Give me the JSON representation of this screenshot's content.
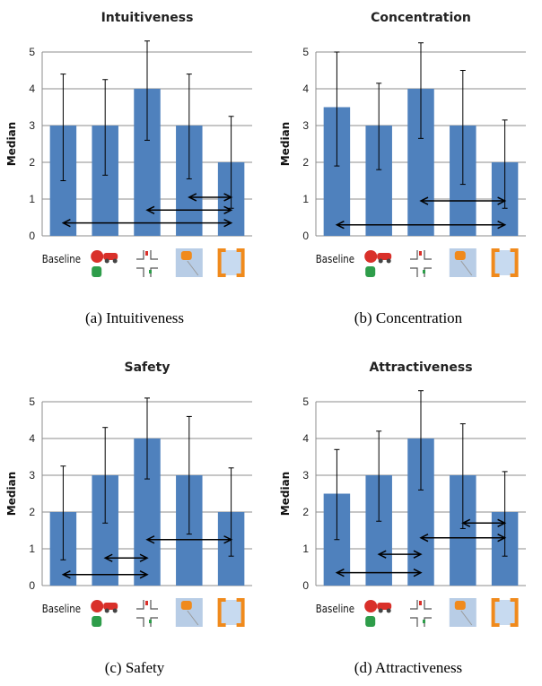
{
  "chart_data": [
    {
      "type": "bar",
      "title": "Intuitiveness",
      "caption": "(a) Intuitiveness",
      "ylabel": "Median",
      "ylim": [
        0,
        5
      ],
      "yticks": [
        "0",
        "1",
        "2",
        "3",
        "4",
        "5"
      ],
      "categories": [
        "Baseline",
        "",
        "",
        "",
        ""
      ],
      "category_icons": [
        "none",
        "stop-sign-car-icon",
        "intersection-icon",
        "car-alert-icon",
        "corner-brackets-icon"
      ],
      "values": [
        3,
        3,
        4,
        3,
        2
      ],
      "error_bars": [
        [
          1.5,
          4.4
        ],
        [
          1.65,
          4.25
        ],
        [
          2.6,
          5.3
        ],
        [
          1.55,
          4.4
        ],
        [
          0.75,
          3.25
        ]
      ],
      "significance": [
        [
          0,
          4,
          0.35
        ],
        [
          2,
          4,
          0.7
        ],
        [
          3,
          4,
          1.05
        ]
      ],
      "bar_color": "#4f81bd",
      "grid": "horizontal"
    },
    {
      "type": "bar",
      "title": "Concentration",
      "caption": "(b) Concentration",
      "ylabel": "Median",
      "ylim": [
        0,
        5
      ],
      "yticks": [
        "0",
        "1",
        "2",
        "3",
        "4",
        "5"
      ],
      "categories": [
        "Baseline",
        "",
        "",
        "",
        ""
      ],
      "category_icons": [
        "none",
        "stop-sign-car-icon",
        "intersection-icon",
        "car-alert-icon",
        "corner-brackets-icon"
      ],
      "values": [
        3.5,
        3,
        4,
        3,
        2
      ],
      "error_bars": [
        [
          1.9,
          5.0
        ],
        [
          1.8,
          4.15
        ],
        [
          2.65,
          5.25
        ],
        [
          1.4,
          4.5
        ],
        [
          0.75,
          3.15
        ]
      ],
      "significance": [
        [
          0,
          4,
          0.3
        ],
        [
          2,
          4,
          0.95
        ]
      ],
      "bar_color": "#4f81bd",
      "grid": "horizontal"
    },
    {
      "type": "bar",
      "title": "Safety",
      "caption": "(c) Safety",
      "ylabel": "Median",
      "ylim": [
        0,
        5
      ],
      "yticks": [
        "0",
        "1",
        "2",
        "3",
        "4",
        "5"
      ],
      "categories": [
        "Baseline",
        "",
        "",
        "",
        ""
      ],
      "category_icons": [
        "none",
        "stop-sign-car-icon",
        "intersection-icon",
        "car-alert-icon",
        "corner-brackets-icon"
      ],
      "values": [
        2,
        3,
        4,
        3,
        2
      ],
      "error_bars": [
        [
          0.7,
          3.25
        ],
        [
          1.7,
          4.3
        ],
        [
          2.9,
          5.1
        ],
        [
          1.4,
          4.6
        ],
        [
          0.8,
          3.2
        ]
      ],
      "significance": [
        [
          0,
          2,
          0.3
        ],
        [
          1,
          2,
          0.75
        ],
        [
          2,
          4,
          1.25
        ]
      ],
      "bar_color": "#4f81bd",
      "grid": "horizontal"
    },
    {
      "type": "bar",
      "title": "Attractiveness",
      "caption": "(d) Attractiveness",
      "ylabel": "Median",
      "ylim": [
        0,
        5
      ],
      "yticks": [
        "0",
        "1",
        "2",
        "3",
        "4",
        "5"
      ],
      "categories": [
        "Baseline",
        "",
        "",
        "",
        ""
      ],
      "category_icons": [
        "none",
        "stop-sign-car-icon",
        "intersection-icon",
        "car-alert-icon",
        "corner-brackets-icon"
      ],
      "values": [
        2.5,
        3,
        4,
        3,
        2
      ],
      "error_bars": [
        [
          1.25,
          3.7
        ],
        [
          1.75,
          4.2
        ],
        [
          2.6,
          5.3
        ],
        [
          1.55,
          4.4
        ],
        [
          0.8,
          3.1
        ]
      ],
      "significance": [
        [
          0,
          2,
          0.35
        ],
        [
          1,
          2,
          0.85
        ],
        [
          2,
          4,
          1.3
        ],
        [
          3,
          4,
          1.7
        ]
      ],
      "bar_color": "#4f81bd",
      "grid": "horizontal"
    }
  ]
}
